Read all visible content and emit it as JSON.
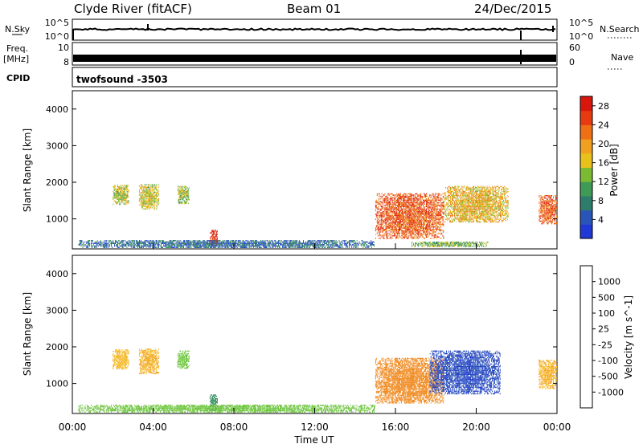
{
  "header": {
    "station": "Clyde River (fitACF)",
    "beam": "Beam 01",
    "date": "24/Dec/2015"
  },
  "top_panels": {
    "nsky_label": "N.Sky",
    "nsky_tick_top": "10^5",
    "nsky_tick_bottom": "10^0",
    "nsearch_label": "N.Search",
    "nsearch_tick_top": "10^5",
    "nsearch_tick_bottom": "10^0",
    "freq_label_1": "Freq.",
    "freq_label_2": "[MHz]",
    "freq_tick_top": "10",
    "freq_tick_bottom": "8",
    "nave_label": "Nave",
    "nave_tick_top": "60",
    "nave_tick_bottom": "0",
    "cpid_label": "CPID",
    "cpid_value": "twofsound -3503"
  },
  "chart_data": [
    {
      "type": "heatmap",
      "title": "",
      "xlabel": "",
      "ylabel": "Slant Range [km]",
      "ylim": [
        180,
        4500
      ],
      "yticks": [
        "1000",
        "2000",
        "3000",
        "4000"
      ],
      "xlim": [
        0,
        24
      ],
      "colorbar": {
        "label": "Power [dB]",
        "ticks": [
          "4",
          "8",
          "12",
          "16",
          "20",
          "24",
          "28"
        ],
        "range": [
          0,
          30
        ],
        "colors": [
          "#1f38d6",
          "#2a55b8",
          "#2e7d6a",
          "#3f9a55",
          "#7bbb34",
          "#e8c21a",
          "#f0a020",
          "#ee6f14",
          "#e63a10",
          "#d9160c"
        ]
      },
      "echo_regions": [
        {
          "t0": 2.0,
          "t1": 2.8,
          "r0": 1380,
          "r1": 1930,
          "level": 15
        },
        {
          "t0": 3.3,
          "t1": 4.3,
          "r0": 1250,
          "r1": 1950,
          "level": 16
        },
        {
          "t0": 5.2,
          "t1": 5.8,
          "r0": 1400,
          "r1": 1900,
          "level": 14
        },
        {
          "t0": 6.8,
          "t1": 7.2,
          "r0": 250,
          "r1": 700,
          "level": 27
        },
        {
          "t0": 15.0,
          "t1": 18.4,
          "r0": 450,
          "r1": 1700,
          "level": 24
        },
        {
          "t0": 18.4,
          "t1": 21.6,
          "r0": 900,
          "r1": 1900,
          "level": 18
        },
        {
          "t0": 23.1,
          "t1": 24.0,
          "r0": 850,
          "r1": 1650,
          "level": 24
        },
        {
          "t0": 16.8,
          "t1": 20.6,
          "r0": 230,
          "r1": 380,
          "level": 12
        },
        {
          "t0": 0.3,
          "t1": 15.0,
          "r0": 200,
          "r1": 420,
          "level": 6
        }
      ]
    },
    {
      "type": "heatmap",
      "title": "",
      "xlabel": "Time UT",
      "ylabel": "Slant Range [km]",
      "ylim": [
        180,
        4500
      ],
      "yticks": [
        "1000",
        "2000",
        "3000",
        "4000"
      ],
      "xlim": [
        0,
        24
      ],
      "xticks": [
        "00:00",
        "04:00",
        "08:00",
        "12:00",
        "16:00",
        "20:00",
        "00:00"
      ],
      "colorbar": {
        "label": "Velocity [m s^-1]",
        "ticks": [
          "-1000",
          "-500",
          "-100",
          "-25",
          "25",
          "100",
          "500",
          "1000"
        ],
        "colors": [
          "#e01010",
          "#f04515",
          "#f08a20",
          "#f5b825",
          "#c8c8c8",
          "#6bc53a",
          "#2e8a5a",
          "#2a55b8",
          "#1a2fd0"
        ]
      },
      "echo_regions": [
        {
          "t0": 2.0,
          "t1": 2.8,
          "r0": 1380,
          "r1": 1930,
          "vel": -50
        },
        {
          "t0": 3.3,
          "t1": 4.3,
          "r0": 1250,
          "r1": 1950,
          "vel": -80
        },
        {
          "t0": 5.2,
          "t1": 5.8,
          "r0": 1400,
          "r1": 1900,
          "vel": 60
        },
        {
          "t0": 6.8,
          "t1": 7.2,
          "r0": 250,
          "r1": 700,
          "vel": 300
        },
        {
          "t0": 15.0,
          "t1": 18.4,
          "r0": 450,
          "r1": 1700,
          "vel": -300
        },
        {
          "t0": 17.7,
          "t1": 21.2,
          "r0": 700,
          "r1": 1900,
          "vel": 900
        },
        {
          "t0": 23.1,
          "t1": 24.0,
          "r0": 850,
          "r1": 1650,
          "vel": -80
        },
        {
          "t0": 0.3,
          "t1": 15.0,
          "r0": 200,
          "r1": 420,
          "vel": 40
        }
      ]
    }
  ]
}
